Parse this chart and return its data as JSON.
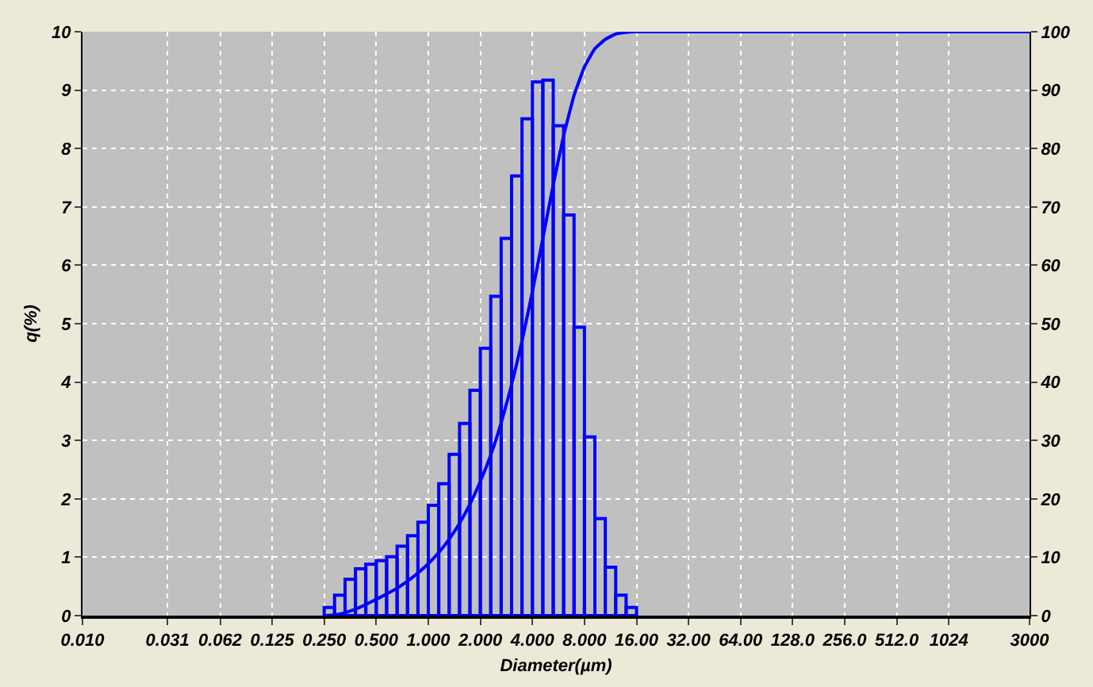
{
  "chart_data": {
    "type": "histogram",
    "xlabel": "Diameter(µm)",
    "ylabel": "q(%)",
    "bins": [
      0.25,
      0.287,
      0.33,
      0.379,
      0.435,
      0.5,
      0.574,
      0.66,
      0.758,
      0.871,
      1.0,
      1.149,
      1.32,
      1.516,
      1.741,
      2.0,
      2.297,
      2.639,
      3.031,
      3.482,
      4.0,
      4.595,
      5.278,
      6.063,
      6.964,
      8.0,
      9.19,
      10.556,
      12.126,
      13.929,
      16.0
    ],
    "series": [
      {
        "color": "#0000ff",
        "values": [
          0.14,
          0.35,
          0.62,
          0.8,
          0.88,
          0.94,
          1.01,
          1.19,
          1.37,
          1.6,
          1.89,
          2.26,
          2.76,
          3.29,
          3.86,
          4.58,
          5.47,
          6.46,
          7.53,
          8.51,
          9.14,
          9.17,
          8.39,
          6.86,
          4.94,
          3.06,
          1.66,
          0.83,
          0.35,
          0.14
        ]
      },
      {
        "type": "line",
        "axis": "y2",
        "color": "#0000ff",
        "x": [
          0.25,
          0.287,
          0.33,
          0.379,
          0.435,
          0.5,
          0.574,
          0.66,
          0.758,
          0.871,
          1.0,
          1.149,
          1.32,
          1.516,
          1.741,
          2.0,
          2.297,
          2.639,
          3.031,
          3.482,
          4.0,
          4.595,
          5.278,
          6.063,
          6.964,
          8.0,
          9.19,
          10.556,
          12.126,
          13.929,
          16.0,
          3000
        ],
        "values": [
          0,
          0.1,
          0.5,
          1.1,
          1.9,
          2.8,
          3.7,
          4.7,
          5.9,
          7.3,
          8.9,
          10.8,
          13.1,
          15.8,
          19.1,
          23.0,
          27.5,
          33.0,
          39.5,
          47.0,
          55.5,
          64.6,
          73.8,
          82.2,
          89.1,
          94.0,
          97.1,
          98.7,
          99.6,
          99.9,
          100,
          100
        ]
      }
    ],
    "log": "x",
    "xlim": [
      0.01,
      3000
    ],
    "xticks": [
      {
        "value": 0.01,
        "label": "0.010"
      },
      0.031,
      {
        "value": 0.0625,
        "label": "0.062"
      },
      0.125,
      {
        "value": 0.25,
        "label": "0.250"
      },
      {
        "value": 0.5,
        "label": "0.500"
      },
      {
        "value": 1,
        "label": "1.000"
      },
      {
        "value": 2,
        "label": "2.000"
      },
      {
        "value": 4,
        "label": "4.000"
      },
      {
        "value": 8,
        "label": "8.000"
      },
      {
        "value": 16,
        "label": "16.00"
      },
      {
        "value": 32,
        "label": "32.00"
      },
      {
        "value": 64,
        "label": "64.00"
      },
      {
        "value": 128,
        "label": "128.0"
      },
      {
        "value": 256,
        "label": "256.0"
      },
      {
        "value": 512,
        "label": "512.0"
      },
      1024,
      3000
    ],
    "ylim": [
      0,
      10
    ],
    "yticks": [
      0,
      1,
      2,
      3,
      4,
      5,
      6,
      7,
      8,
      9,
      10
    ],
    "y2lim": [
      0,
      100
    ],
    "y2ticks": [
      0,
      10,
      20,
      30,
      40,
      50,
      60,
      70,
      80,
      90,
      100
    ],
    "grid": true
  }
}
